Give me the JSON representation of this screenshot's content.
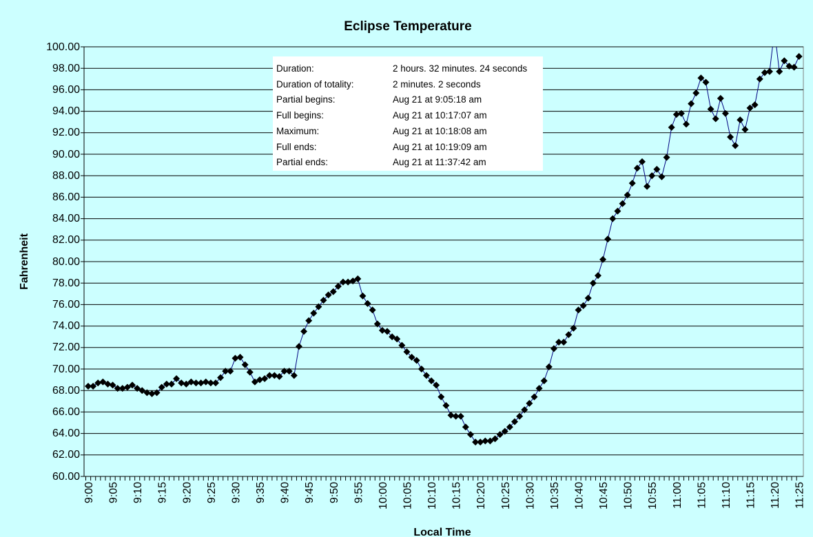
{
  "chart_data": {
    "type": "line",
    "title": "Eclipse Temperature",
    "xlabel": "Local Time",
    "ylabel": "Fahrenheit",
    "ylim": [
      60,
      100
    ],
    "ytick_step": 2,
    "grid": true,
    "x_start": "9:00",
    "x_interval_minutes": 1,
    "x_tick_labels": [
      "9:00",
      "9:05",
      "9:10",
      "9:15",
      "9:20",
      "9:25",
      "9:30",
      "9:35",
      "9:40",
      "9:45",
      "9:50",
      "9:55",
      "10:00",
      "10:05",
      "10:10",
      "10:15",
      "10:20",
      "10:25",
      "10:30",
      "10:35",
      "10:40",
      "10:45",
      "10:50",
      "10:55",
      "11:00",
      "11:05",
      "11:10",
      "11:15",
      "11:20",
      "11:25"
    ],
    "series": [
      {
        "name": "Temperature",
        "color": "#000080",
        "marker": "diamond",
        "values": [
          68.4,
          68.4,
          68.7,
          68.8,
          68.6,
          68.5,
          68.2,
          68.2,
          68.3,
          68.5,
          68.2,
          68.0,
          67.8,
          67.7,
          67.8,
          68.3,
          68.6,
          68.6,
          69.1,
          68.7,
          68.6,
          68.8,
          68.7,
          68.7,
          68.8,
          68.7,
          68.7,
          69.2,
          69.8,
          69.8,
          71.0,
          71.1,
          70.4,
          69.7,
          68.8,
          69.0,
          69.1,
          69.4,
          69.4,
          69.3,
          69.8,
          69.8,
          69.4,
          72.1,
          73.5,
          74.5,
          75.2,
          75.8,
          76.4,
          76.9,
          77.2,
          77.7,
          78.1,
          78.1,
          78.2,
          78.4,
          76.8,
          76.1,
          75.5,
          74.2,
          73.6,
          73.5,
          73.0,
          72.8,
          72.2,
          71.6,
          71.1,
          70.8,
          70.0,
          69.4,
          68.9,
          68.5,
          67.4,
          66.6,
          65.7,
          65.6,
          65.6,
          64.6,
          63.9,
          63.2,
          63.2,
          63.3,
          63.3,
          63.5,
          63.9,
          64.2,
          64.6,
          65.1,
          65.6,
          66.2,
          66.8,
          67.4,
          68.2,
          68.9,
          70.2,
          71.9,
          72.5,
          72.5,
          73.2,
          73.8,
          75.5,
          75.9,
          76.6,
          78.0,
          78.7,
          80.2,
          82.1,
          84.0,
          84.7,
          85.4,
          86.2,
          87.3,
          88.7,
          89.3,
          87.0,
          88.0,
          88.6,
          87.9,
          89.7,
          92.5,
          93.7,
          93.8,
          92.8,
          94.7,
          95.7,
          97.1,
          96.7,
          94.2,
          93.3,
          95.2,
          93.8,
          91.6,
          90.8,
          93.2,
          92.3,
          94.3,
          94.6,
          97.0,
          97.6,
          97.7,
          101.5,
          97.7,
          98.7,
          98.2,
          98.1,
          99.1
        ]
      }
    ],
    "annotation_table": [
      {
        "label": "Duration:",
        "value": "2 hours. 32 minutes. 24 seconds"
      },
      {
        "label": "Duration of totality:",
        "value": "2 minutes. 2 seconds"
      },
      {
        "label": "Partial begins:",
        "value": "Aug 21 at 9:05:18 am"
      },
      {
        "label": "Full begins:",
        "value": "Aug 21 at 10:17:07 am"
      },
      {
        "label": "Maximum:",
        "value": "Aug 21 at 10:18:08 am"
      },
      {
        "label": "Full ends:",
        "value": "Aug 21 at 10:19:09 am"
      },
      {
        "label": "Partial ends:",
        "value": "Aug 21 at 11:37:42 am"
      }
    ]
  }
}
